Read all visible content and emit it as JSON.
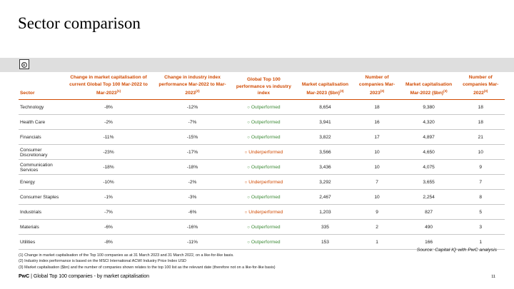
{
  "title": "Sector comparison",
  "table": {
    "headers": [
      {
        "text": "Sector"
      },
      {
        "text": "Change in market capitalisation of current Global Top 100 Mar-2022 to Mar-2023",
        "note": "(1)"
      },
      {
        "text": "Change in industry index performance Mar-2022 to Mar-2023",
        "note": "(2)"
      },
      {
        "text": "Global Top 100 performance vs industry index"
      },
      {
        "text": "Market capitalisation Mar-2023 ($bn)",
        "note": "(3)"
      },
      {
        "text": "Number of companies Mar-2023",
        "note": "(3)"
      },
      {
        "text": "Market capitalisation Mar-2022 ($bn)",
        "note": "(3)"
      },
      {
        "text": "Number of companies Mar-2022",
        "note": "(3)"
      }
    ],
    "rows": [
      [
        "Technology",
        "-8%",
        "-12%",
        "Outperformed",
        "8,654",
        "18",
        "9,380",
        "18"
      ],
      [
        "Health Care",
        "-2%",
        "-7%",
        "Outperformed",
        "3,941",
        "16",
        "4,320",
        "18"
      ],
      [
        "Financials",
        "-11%",
        "-15%",
        "Outperformed",
        "3,822",
        "17",
        "4,897",
        "21"
      ],
      [
        "Consumer Discretionary",
        "-23%",
        "-17%",
        "Underperformed",
        "3,566",
        "10",
        "4,650",
        "10"
      ],
      [
        "Communication Services",
        "-18%",
        "-18%",
        "Outperformed",
        "3,436",
        "10",
        "4,075",
        "9"
      ],
      [
        "Energy",
        "-10%",
        "-2%",
        "Underperformed",
        "3,292",
        "7",
        "3,655",
        "7"
      ],
      [
        "Consumer Staples",
        "-1%",
        "-3%",
        "Outperformed",
        "2,467",
        "10",
        "2,254",
        "8"
      ],
      [
        "Industrials",
        "-7%",
        "-6%",
        "Underperformed",
        "1,203",
        "9",
        "827",
        "5"
      ],
      [
        "Materials",
        "-6%",
        "-16%",
        "Outperformed",
        "335",
        "2",
        "490",
        "3"
      ],
      [
        "Utilities",
        "-8%",
        "-11%",
        "Outperformed",
        "153",
        "1",
        "166",
        "1"
      ]
    ],
    "status_colors": {
      "Outperformed": "#3d8b37",
      "Underperformed": "#d04a02"
    }
  },
  "source": "Source: Capital IQ with PwC analysis",
  "footnotes": [
    "(1) Change in market capitalisation of the Top 100 companies as at 31 March 2023 and 31 March 2022,  on a like-for-like basis.",
    "(2) Industry index performance is based on the MSCI International ACWI Industry Price Index USD",
    "(3) Market capitalisation ($bn) and the number of companies shown relates to the top 100 list as the relevant date (therefore not on a like-for-like basis)"
  ],
  "footer": {
    "brand": "PwC",
    "separator": "|",
    "text": "Global Top 100 companies - by market capitalisation",
    "page": "11"
  }
}
